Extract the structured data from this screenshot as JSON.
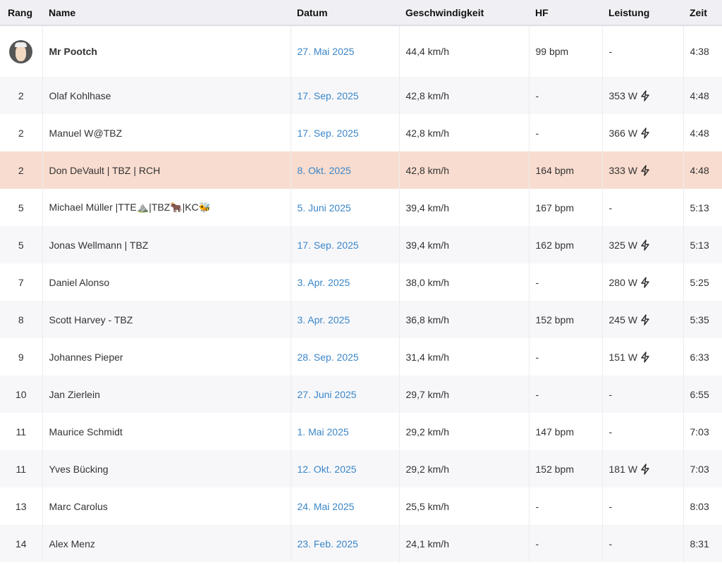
{
  "headers": {
    "rank": "Rang",
    "name": "Name",
    "date": "Datum",
    "speed": "Geschwindigkeit",
    "hr": "HF",
    "power": "Leistung",
    "time": "Zeit"
  },
  "colors": {
    "date_link": "#3a86c8",
    "highlight_row": "#f8dccf",
    "header_bg": "#f0eff4",
    "alt_row": "#f7f7fa"
  },
  "power_icon": "lightning-bolt-icon",
  "first": {
    "avatar": "avatar-image",
    "name": "Mr Pootch",
    "date": "27. Mai 2025",
    "speed": "44,4 km/h",
    "hr": "99 bpm",
    "power": "-",
    "time": "4:38"
  },
  "rows": [
    {
      "rank": "2",
      "name": "Olaf Kohlhase",
      "date": "17. Sep. 2025",
      "speed": "42,8 km/h",
      "hr": "-",
      "power": "353 W",
      "bolt": true,
      "time": "4:48"
    },
    {
      "rank": "2",
      "name": "Manuel W@TBZ",
      "date": "17. Sep. 2025",
      "speed": "42,8 km/h",
      "hr": "-",
      "power": "366 W",
      "bolt": true,
      "time": "4:48"
    },
    {
      "rank": "2",
      "name": "Don DeVault | TBZ | RCH",
      "date": "8. Okt. 2025",
      "speed": "42,8 km/h",
      "hr": "164 bpm",
      "power": "333 W",
      "bolt": true,
      "time": "4:48",
      "highlight": true
    },
    {
      "rank": "5",
      "name": "Michael Müller |TTE⛰️|TBZ🐂|KC🐝",
      "date": "5. Juni 2025",
      "speed": "39,4 km/h",
      "hr": "167 bpm",
      "power": "-",
      "bolt": false,
      "time": "5:13"
    },
    {
      "rank": "5",
      "name": "Jonas Wellmann | TBZ",
      "date": "17. Sep. 2025",
      "speed": "39,4 km/h",
      "hr": "162 bpm",
      "power": "325 W",
      "bolt": true,
      "time": "5:13"
    },
    {
      "rank": "7",
      "name": "Daniel Alonso",
      "date": "3. Apr. 2025",
      "speed": "38,0 km/h",
      "hr": "-",
      "power": "280 W",
      "bolt": true,
      "time": "5:25"
    },
    {
      "rank": "8",
      "name": "Scott Harvey - TBZ",
      "date": "3. Apr. 2025",
      "speed": "36,8 km/h",
      "hr": "152 bpm",
      "power": "245 W",
      "bolt": true,
      "time": "5:35"
    },
    {
      "rank": "9",
      "name": "Johannes Pieper",
      "date": "28. Sep. 2025",
      "speed": "31,4 km/h",
      "hr": "-",
      "power": "151 W",
      "bolt": true,
      "time": "6:33"
    },
    {
      "rank": "10",
      "name": "Jan Zierlein",
      "date": "27. Juni 2025",
      "speed": "29,7 km/h",
      "hr": "-",
      "power": "-",
      "bolt": false,
      "time": "6:55"
    },
    {
      "rank": "11",
      "name": "Maurice Schmidt",
      "date": "1. Mai 2025",
      "speed": "29,2 km/h",
      "hr": "147 bpm",
      "power": "-",
      "bolt": false,
      "time": "7:03"
    },
    {
      "rank": "11",
      "name": "Yves Bücking",
      "date": "12. Okt. 2025",
      "speed": "29,2 km/h",
      "hr": "152 bpm",
      "power": "181 W",
      "bolt": true,
      "time": "7:03"
    },
    {
      "rank": "13",
      "name": "Marc Carolus",
      "date": "24. Mai 2025",
      "speed": "25,5 km/h",
      "hr": "-",
      "power": "-",
      "bolt": false,
      "time": "8:03"
    },
    {
      "rank": "14",
      "name": "Alex Menz",
      "date": "23. Feb. 2025",
      "speed": "24,1 km/h",
      "hr": "-",
      "power": "-",
      "bolt": false,
      "time": "8:31"
    }
  ]
}
